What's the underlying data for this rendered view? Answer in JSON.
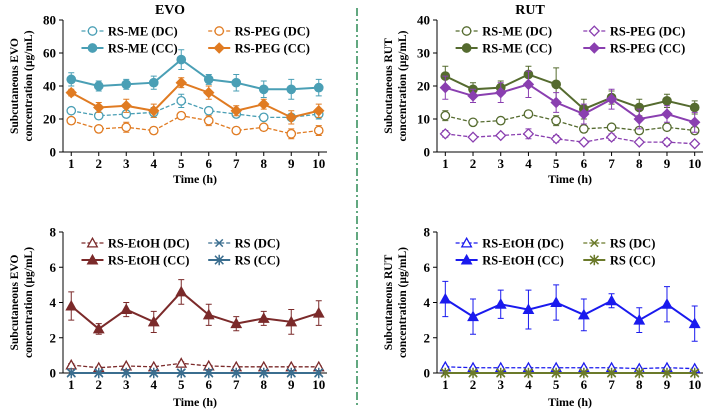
{
  "figure": {
    "section_titles": [
      "EVO",
      "RUT"
    ],
    "divider_color": "#2e8b57"
  },
  "chart_data": [
    {
      "type": "line",
      "id": "evo-top",
      "title": "EVO",
      "xlabel": "Time (h)",
      "ylabel_lines": [
        "Subcutaneous EVO",
        "concentration (µg/mL)"
      ],
      "x": [
        1,
        2,
        3,
        4,
        5,
        6,
        7,
        8,
        9,
        10
      ],
      "xlim": [
        0.7,
        10.3
      ],
      "ylim": [
        0,
        80
      ],
      "yticks": [
        0,
        20,
        40,
        60,
        80
      ],
      "legend_position": "top",
      "series": [
        {
          "name": "RS-ME (DC)",
          "color": "#4a9fb5",
          "marker": "circle",
          "fill": "open",
          "dash": true,
          "values": [
            25,
            22,
            23,
            24,
            31,
            25,
            23,
            21,
            21,
            23
          ],
          "errors": [
            2,
            2,
            2,
            3,
            4,
            2,
            2,
            2,
            2,
            3
          ]
        },
        {
          "name": "RS-PEG (DC)",
          "color": "#e07b22",
          "marker": "circle",
          "fill": "open",
          "dash": true,
          "values": [
            19,
            14,
            15,
            13,
            22,
            19,
            13,
            15,
            11,
            13
          ],
          "errors": [
            1,
            2,
            3,
            2,
            2,
            3,
            2,
            2,
            3,
            3
          ]
        },
        {
          "name": "RS-ME (CC)",
          "color": "#4a9fb5",
          "marker": "circle",
          "fill": "solid",
          "dash": false,
          "values": [
            44,
            40,
            41,
            42,
            56,
            44,
            42,
            38,
            38,
            39
          ],
          "errors": [
            4,
            3,
            3,
            4,
            6,
            3,
            5,
            5,
            6,
            5
          ]
        },
        {
          "name": "RS-PEG (CC)",
          "color": "#e07b22",
          "marker": "diamond",
          "fill": "solid",
          "dash": false,
          "values": [
            36,
            27,
            28,
            25,
            42,
            36,
            25,
            29,
            21,
            25
          ],
          "errors": [
            2,
            3,
            4,
            4,
            3,
            4,
            3,
            3,
            4,
            4
          ]
        }
      ]
    },
    {
      "type": "line",
      "id": "rut-top",
      "title": "RUT",
      "xlabel": "Time (h)",
      "ylabel_lines": [
        "Subcutaneous RUT",
        "concentration (µg/mL)"
      ],
      "x": [
        1,
        2,
        3,
        4,
        5,
        6,
        7,
        8,
        9,
        10
      ],
      "xlim": [
        0.7,
        10.3
      ],
      "ylim": [
        0,
        40
      ],
      "yticks": [
        0,
        10,
        20,
        30,
        40
      ],
      "legend_position": "top",
      "series": [
        {
          "name": "RS-ME (DC)",
          "color": "#556b2f",
          "marker": "circle",
          "fill": "open",
          "dash": true,
          "values": [
            11,
            9,
            9.5,
            11.5,
            9.5,
            7,
            7.5,
            6.5,
            7.5,
            6.5
          ],
          "errors": [
            1.5,
            1,
            1,
            1,
            1.5,
            1,
            1,
            1,
            1,
            1
          ]
        },
        {
          "name": "RS-PEG (DC)",
          "color": "#8a3fb0",
          "marker": "diamond",
          "fill": "open",
          "dash": true,
          "values": [
            5.5,
            4.5,
            5,
            5.5,
            4,
            3,
            4.5,
            3,
            3,
            2.5
          ],
          "errors": [
            1,
            0.5,
            0.5,
            1.5,
            1,
            0.5,
            1,
            0.5,
            1,
            0.5
          ]
        },
        {
          "name": "RS-ME (CC)",
          "color": "#556b2f",
          "marker": "circle",
          "fill": "solid",
          "dash": false,
          "values": [
            23,
            19,
            19.5,
            23.5,
            20.5,
            13,
            16.5,
            13.5,
            15.5,
            13.5
          ],
          "errors": [
            3,
            2,
            2,
            2.5,
            5,
            3,
            2,
            2.5,
            2,
            2
          ]
        },
        {
          "name": "RS-PEG (CC)",
          "color": "#8a3fb0",
          "marker": "diamond",
          "fill": "solid",
          "dash": false,
          "values": [
            19.5,
            17,
            18,
            20.5,
            15,
            11.5,
            16,
            10,
            11.5,
            9
          ],
          "errors": [
            3.5,
            2,
            3,
            4,
            3,
            3,
            3,
            3,
            2.5,
            3
          ]
        }
      ]
    },
    {
      "type": "line",
      "id": "evo-bottom",
      "xlabel": "Time (h)",
      "ylabel_lines": [
        "Subcutaneous EVO",
        "concentration (µg/mL)"
      ],
      "x": [
        1,
        2,
        3,
        4,
        5,
        6,
        7,
        8,
        9,
        10
      ],
      "xlim": [
        0.7,
        10.3
      ],
      "ylim": [
        0,
        8
      ],
      "yticks": [
        0,
        2,
        4,
        6,
        8
      ],
      "legend_position": "top",
      "series": [
        {
          "name": "RS-EtOH (DC)",
          "color": "#7b2a2a",
          "marker": "triangle",
          "fill": "open",
          "dash": true,
          "values": [
            0.45,
            0.3,
            0.4,
            0.35,
            0.55,
            0.4,
            0.35,
            0.35,
            0.35,
            0.35
          ],
          "errors": [
            0.08,
            0.05,
            0.05,
            0.05,
            0.08,
            0.05,
            0.05,
            0.05,
            0.05,
            0.05
          ]
        },
        {
          "name": "RS (DC)",
          "color": "#3b6e8f",
          "marker": "x",
          "fill": "open",
          "dash": true,
          "values": [
            0.02,
            0.02,
            0.02,
            0.02,
            0.02,
            0.02,
            0.02,
            0.02,
            0.02,
            0.02
          ],
          "errors": [
            0,
            0,
            0,
            0,
            0,
            0,
            0,
            0,
            0,
            0
          ]
        },
        {
          "name": "RS-EtOH (CC)",
          "color": "#7b2a2a",
          "marker": "triangle",
          "fill": "solid",
          "dash": false,
          "values": [
            3.8,
            2.5,
            3.6,
            2.9,
            4.6,
            3.3,
            2.8,
            3.1,
            2.9,
            3.4
          ],
          "errors": [
            0.8,
            0.3,
            0.4,
            0.6,
            0.7,
            0.6,
            0.4,
            0.4,
            0.7,
            0.7
          ]
        },
        {
          "name": "RS (CC)",
          "color": "#3b6e8f",
          "marker": "star",
          "fill": "solid",
          "dash": false,
          "values": [
            0,
            0,
            0,
            0,
            0,
            0,
            0,
            0,
            0,
            0
          ],
          "errors": [
            0,
            0,
            0,
            0,
            0,
            0,
            0,
            0,
            0,
            0
          ]
        }
      ]
    },
    {
      "type": "line",
      "id": "rut-bottom",
      "xlabel": "Time (h)",
      "ylabel_lines": [
        "Subcutaneous RUT",
        "concentration (µg/mL)"
      ],
      "x": [
        1,
        2,
        3,
        4,
        5,
        6,
        7,
        8,
        9,
        10
      ],
      "xlim": [
        0.7,
        10.3
      ],
      "ylim": [
        0,
        8
      ],
      "yticks": [
        0,
        2,
        4,
        6,
        8
      ],
      "legend_position": "top",
      "series": [
        {
          "name": "RS-EtOH (DC)",
          "color": "#1a1aee",
          "marker": "triangle",
          "fill": "open",
          "dash": true,
          "values": [
            0.35,
            0.3,
            0.3,
            0.3,
            0.3,
            0.3,
            0.3,
            0.25,
            0.3,
            0.25
          ],
          "errors": [
            0.05,
            0.05,
            0.05,
            0.05,
            0.05,
            0.05,
            0.05,
            0.05,
            0.05,
            0.05
          ]
        },
        {
          "name": "RS (DC)",
          "color": "#6b7a2a",
          "marker": "x",
          "fill": "open",
          "dash": true,
          "values": [
            0.02,
            0.02,
            0.02,
            0.02,
            0.02,
            0.02,
            0.02,
            0.02,
            0.02,
            0.02
          ],
          "errors": [
            0,
            0,
            0,
            0,
            0,
            0,
            0,
            0,
            0,
            0
          ]
        },
        {
          "name": "RS-EtOH (CC)",
          "color": "#1a1aee",
          "marker": "triangle",
          "fill": "solid",
          "dash": false,
          "values": [
            4.2,
            3.2,
            3.9,
            3.6,
            4.0,
            3.3,
            4.1,
            3.0,
            3.9,
            2.8
          ],
          "errors": [
            1.0,
            1.0,
            0.8,
            1.1,
            1.0,
            0.9,
            0.4,
            0.7,
            1.0,
            1.0
          ]
        },
        {
          "name": "RS (CC)",
          "color": "#6b7a2a",
          "marker": "star",
          "fill": "solid",
          "dash": false,
          "values": [
            0,
            0,
            0,
            0,
            0,
            0,
            0,
            0,
            0,
            0
          ],
          "errors": [
            0,
            0,
            0,
            0,
            0,
            0,
            0,
            0,
            0,
            0
          ]
        }
      ]
    }
  ]
}
